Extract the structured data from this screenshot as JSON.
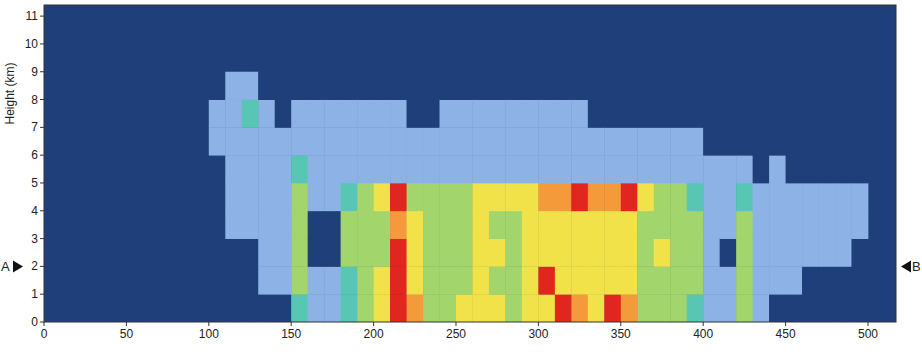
{
  "chart_data": {
    "type": "heatmap",
    "y_label": "Height (km)",
    "xlim": [
      0,
      517
    ],
    "ylim": [
      0,
      11.4
    ],
    "xticks": [
      0,
      50,
      100,
      150,
      200,
      250,
      300,
      350,
      400,
      450,
      500
    ],
    "yticks": [
      0,
      1,
      2,
      3,
      4,
      5,
      6,
      7,
      8,
      9,
      10,
      11
    ],
    "colors": [
      "#1f3f7a",
      "#8db3e6",
      "#57c7b4",
      "#a2d56c",
      "#f2e24a",
      "#f59a3a",
      "#e0261e"
    ],
    "annotations": [
      {
        "label": "A",
        "y": 2
      },
      {
        "label": "B",
        "y": 2
      }
    ],
    "x_bins": [
      100,
      110,
      120,
      130,
      140,
      150,
      160,
      170,
      180,
      190,
      200,
      210,
      220,
      230,
      240,
      250,
      260,
      270,
      280,
      290,
      300,
      310,
      320,
      330,
      340,
      350,
      360,
      370,
      380,
      390,
      400,
      410,
      420,
      430,
      440,
      450,
      460,
      470,
      480,
      490,
      500
    ],
    "y_bins": [
      0,
      1,
      2,
      3,
      4,
      5,
      6,
      7,
      8,
      9
    ],
    "cells": [
      [
        0,
        0,
        0,
        0,
        0,
        0,
        1,
        1,
        0
      ],
      [
        0,
        0,
        0,
        1,
        1,
        1,
        1,
        1,
        1
      ],
      [
        0,
        0,
        0,
        1,
        1,
        1,
        1,
        2,
        1
      ],
      [
        0,
        1,
        1,
        1,
        1,
        1,
        1,
        1,
        0
      ],
      [
        0,
        1,
        1,
        1,
        1,
        1,
        1,
        0,
        0
      ],
      [
        2,
        3,
        3,
        3,
        3,
        2,
        1,
        1,
        0
      ],
      [
        1,
        1,
        0,
        0,
        1,
        1,
        1,
        1,
        0
      ],
      [
        1,
        1,
        0,
        0,
        1,
        1,
        1,
        1,
        0
      ],
      [
        2,
        2,
        3,
        3,
        2,
        1,
        1,
        1,
        0
      ],
      [
        3,
        3,
        3,
        3,
        3,
        1,
        1,
        1,
        0
      ],
      [
        4,
        4,
        3,
        3,
        4,
        1,
        1,
        1,
        0
      ],
      [
        6,
        6,
        6,
        5,
        6,
        1,
        1,
        1,
        0
      ],
      [
        5,
        4,
        4,
        4,
        3,
        1,
        1,
        0,
        0
      ],
      [
        3,
        3,
        3,
        3,
        3,
        1,
        1,
        0,
        0
      ],
      [
        3,
        3,
        3,
        3,
        3,
        1,
        1,
        1,
        0
      ],
      [
        4,
        3,
        3,
        3,
        3,
        1,
        1,
        1,
        0
      ],
      [
        4,
        4,
        4,
        4,
        4,
        1,
        1,
        1,
        0
      ],
      [
        4,
        3,
        4,
        3,
        4,
        1,
        1,
        1,
        0
      ],
      [
        3,
        3,
        3,
        3,
        4,
        1,
        1,
        1,
        0
      ],
      [
        4,
        4,
        4,
        4,
        4,
        1,
        1,
        1,
        0
      ],
      [
        4,
        6,
        4,
        4,
        5,
        1,
        1,
        1,
        0
      ],
      [
        6,
        4,
        4,
        4,
        5,
        1,
        1,
        1,
        0
      ],
      [
        5,
        4,
        4,
        4,
        6,
        1,
        1,
        1,
        0
      ],
      [
        4,
        4,
        4,
        4,
        5,
        1,
        1,
        0,
        0
      ],
      [
        6,
        4,
        4,
        4,
        5,
        1,
        1,
        0,
        0
      ],
      [
        5,
        4,
        4,
        4,
        6,
        1,
        1,
        0,
        0
      ],
      [
        3,
        3,
        3,
        3,
        4,
        1,
        1,
        0,
        0
      ],
      [
        3,
        3,
        4,
        3,
        3,
        1,
        1,
        0,
        0
      ],
      [
        3,
        3,
        3,
        3,
        3,
        1,
        1,
        0,
        0
      ],
      [
        2,
        3,
        3,
        3,
        2,
        1,
        1,
        0,
        0
      ],
      [
        1,
        1,
        1,
        1,
        1,
        1,
        0,
        0,
        0
      ],
      [
        1,
        1,
        0,
        1,
        1,
        1,
        0,
        0,
        0
      ],
      [
        3,
        3,
        3,
        3,
        2,
        1,
        0,
        0,
        0
      ],
      [
        1,
        1,
        1,
        1,
        1,
        0,
        0,
        0,
        0
      ],
      [
        0,
        1,
        1,
        1,
        1,
        1,
        0,
        0,
        0
      ],
      [
        0,
        1,
        1,
        1,
        1,
        0,
        0,
        0,
        0
      ],
      [
        0,
        0,
        1,
        1,
        1,
        0,
        0,
        0,
        0
      ],
      [
        0,
        0,
        1,
        1,
        1,
        0,
        0,
        0,
        0
      ],
      [
        0,
        0,
        1,
        1,
        1,
        0,
        0,
        0,
        0
      ],
      [
        0,
        0,
        0,
        1,
        1,
        0,
        0,
        0,
        0
      ]
    ]
  }
}
